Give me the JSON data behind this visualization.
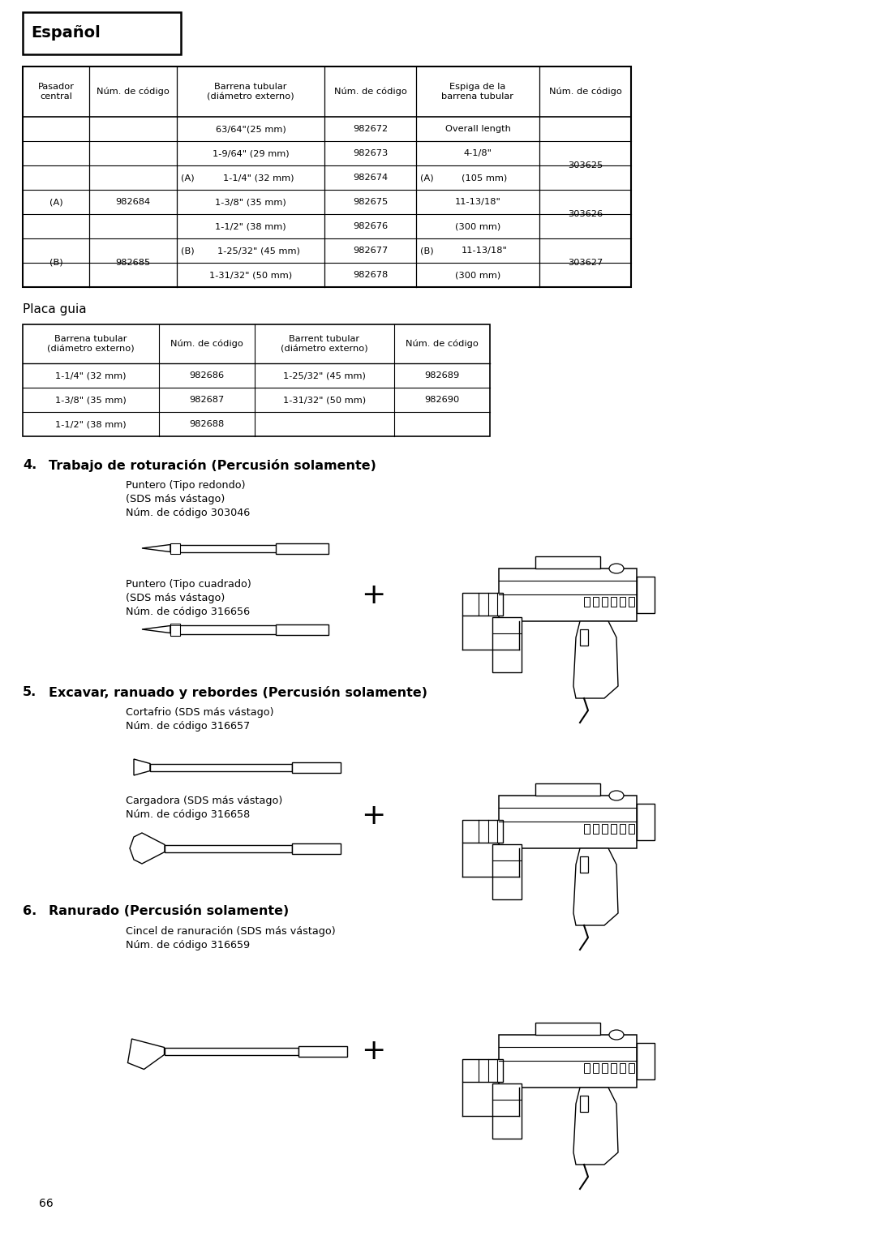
{
  "page_bg": "#ffffff",
  "page_number": "66",
  "header_text": "Español",
  "t1_col_headers": [
    "Pasador\ncentral",
    "Núm. de código",
    "Barrena tubular\n(diámetro externo)",
    "Núm. de código",
    "Espiga de la\nbarrena tubular",
    "Núm. de código"
  ],
  "t2_col_headers": [
    "Barrena tubular\n(diámetro externo)",
    "Núm. de código",
    "Barrent tubular\n(diámetro externo)",
    "Núm. de código"
  ],
  "placa_guia_title": "Placa guia",
  "section4_title": "4.   Trabajo de roturación (Percusión solamente)",
  "section4_tool1_label": "Puntero (Tipo redondo)\n(SDS más vástago)\nNúm. de código 303046",
  "section4_tool2_label": "Puntero (Tipo cuadrado)\n(SDS más vástago)\nNúm. de código 316656",
  "section5_title": "5.   Excavar, ranuado y rebordes (Percusión solamente)",
  "section5_tool1_label": "Cortafrio (SDS más vástago)\nNúm. de código 316657",
  "section5_tool2_label": "Cargadora (SDS más vástago)\nNúm. de código 316658",
  "section6_title": "6.   Ranurado (Percusión solamente)",
  "section6_tool1_label": "Cincel de ranuración (SDS más vástago)\nNúm. de código 316659",
  "line_color": "#000000",
  "text_color": "#000000"
}
